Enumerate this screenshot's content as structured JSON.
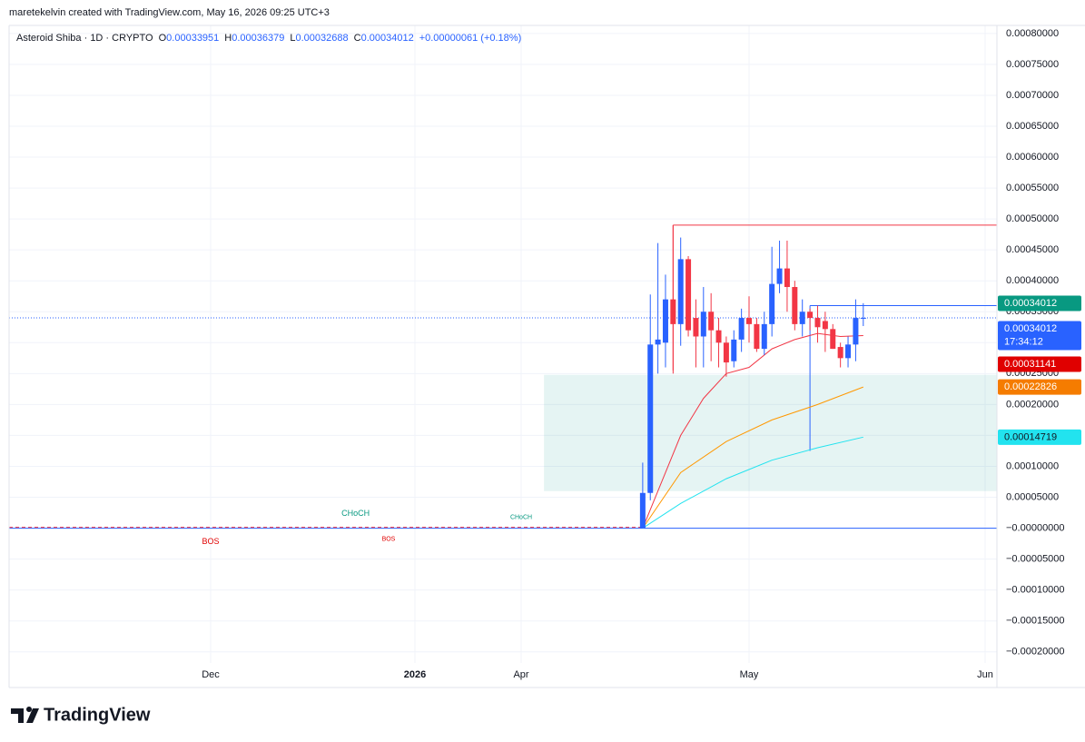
{
  "header": "maretekelvin created with TradingView.com, May 16, 2026 09:25 UTC+3",
  "brand": "TradingView",
  "chart_data": {
    "type": "candlestick",
    "title": "Asteroid Shiba · 1D · CRYPTO",
    "legend_labels": {
      "open": "O",
      "high": "H",
      "low": "L",
      "close": "C"
    },
    "change": "+0.00000061 (+0.18%)",
    "up_color": "#2962ff",
    "down_color": "#f23645",
    "xlim": [
      "2025-10-31",
      "2026-06-02"
    ],
    "xticks": [
      {
        "value": "2025-12-01",
        "label": "Dec"
      },
      {
        "value": "2026-01-01",
        "label": "2026"
      },
      {
        "value": "2026-04-01",
        "label": "Apr"
      },
      {
        "value": "2026-05-01",
        "label": "May"
      },
      {
        "value": "2026-06-01",
        "label": "Jun"
      }
    ],
    "ylim": [
      -0.000218,
      0.000813
    ],
    "yticks": [
      {
        "value": 0.0008,
        "label": "0.00080000"
      },
      {
        "value": 0.00075,
        "label": "0.00075000"
      },
      {
        "value": 0.0007,
        "label": "0.00070000"
      },
      {
        "value": 0.00065,
        "label": "0.00065000"
      },
      {
        "value": 0.0006,
        "label": "0.00060000"
      },
      {
        "value": 0.00055,
        "label": "0.00055000"
      },
      {
        "value": 0.0005,
        "label": "0.00050000"
      },
      {
        "value": 0.00045,
        "label": "0.00045000"
      },
      {
        "value": 0.0004,
        "label": "0.00040000"
      },
      {
        "value": 0.00035,
        "label": "0.00035000"
      },
      {
        "value": 0.0003,
        "label": "0.00030000"
      },
      {
        "value": 0.00025,
        "label": "0.00025000"
      },
      {
        "value": 0.0002,
        "label": "0.00020000"
      },
      {
        "value": 0.00015,
        "label": "0.00015000"
      },
      {
        "value": 0.0001,
        "label": "0.00010000"
      },
      {
        "value": 5e-05,
        "label": "0.00005000"
      },
      {
        "value": 0,
        "label": "−0.00000000"
      },
      {
        "value": -5e-05,
        "label": "−0.00005000"
      },
      {
        "value": -0.0001,
        "label": "−0.00010000"
      },
      {
        "value": -0.00015,
        "label": "−0.00015000"
      },
      {
        "value": -0.0002,
        "label": "−0.00020000"
      }
    ],
    "grid": true,
    "x": [
      "2026-04-17",
      "2026-04-18",
      "2026-04-19",
      "2026-04-20",
      "2026-04-21",
      "2026-04-22",
      "2026-04-23",
      "2026-04-24",
      "2026-04-25",
      "2026-04-26",
      "2026-04-27",
      "2026-04-28",
      "2026-04-29",
      "2026-04-30",
      "2026-05-01",
      "2026-05-02",
      "2026-05-03",
      "2026-05-04",
      "2026-05-05",
      "2026-05-06",
      "2026-05-07",
      "2026-05-08",
      "2026-05-09",
      "2026-05-10",
      "2026-05-11",
      "2026-05-12",
      "2026-05-13",
      "2026-05-14",
      "2026-05-15",
      "2026-05-16"
    ],
    "open": [
      0,
      5.7e-05,
      0.000297,
      0.0003,
      0.00037,
      0.00033,
      0.000435,
      0.00034,
      0.00031,
      0.00035,
      0.00032,
      0.0003,
      0.00027,
      0.000305,
      0.00034,
      0.00033,
      0.00029,
      0.00033,
      0.000395,
      0.00042,
      0.00039,
      0.00033,
      0.00035,
      0.00034,
      0.000335,
      0.000322,
      0.000293,
      0.000275,
      0.000297,
      0.00033951
    ],
    "high": [
      0.000106,
      0.000378,
      0.000461,
      0.00041,
      0.00049,
      0.00047,
      0.00044,
      0.00037,
      0.00039,
      0.00038,
      0.00034,
      0.00031,
      0.00032,
      0.000355,
      0.000375,
      0.00034,
      0.00035,
      0.000455,
      0.000465,
      0.000465,
      0.0004,
      0.00037,
      0.000355,
      0.00036,
      0.00035,
      0.00033,
      0.0003,
      0.00031,
      0.00037,
      0.00036379
    ],
    "low": [
      0,
      4.5e-05,
      0.00025,
      0.00026,
      0.00025,
      0.000295,
      0.00031,
      0.00026,
      0.00026,
      0.00027,
      0.00026,
      0.000245,
      0.00026,
      0.000285,
      0.0003,
      0.000285,
      0.00028,
      0.00031,
      0.00038,
      0.00035,
      0.00032,
      0.00031,
      0.00032,
      0.0003,
      0.000285,
      0.00029,
      0.00026,
      0.00026,
      0.00027,
      0.00032688
    ],
    "close": [
      5.7e-05,
      0.000297,
      0.000305,
      0.00037,
      0.00033,
      0.000435,
      0.00032,
      0.00031,
      0.00035,
      0.00032,
      0.0003,
      0.000268,
      0.000305,
      0.00034,
      0.00033,
      0.00029,
      0.00033,
      0.000395,
      0.00042,
      0.00039,
      0.00033,
      0.00035,
      0.00034,
      0.000325,
      0.000322,
      0.00029,
      0.000275,
      0.000297,
      0.00034,
      0.00034012
    ],
    "series": [
      {
        "color": "#f23645",
        "x": [
          "2026-04-17",
          "2026-04-19",
          "2026-04-22",
          "2026-04-25",
          "2026-04-28",
          "2026-05-01",
          "2026-05-04",
          "2026-05-07",
          "2026-05-10",
          "2026-05-13",
          "2026-05-16"
        ],
        "values": [
          0,
          6e-05,
          0.00015,
          0.00021,
          0.00025,
          0.00026,
          0.00029,
          0.000305,
          0.000315,
          0.00031,
          0.00031141
        ]
      },
      {
        "color": "#ff9800",
        "x": [
          "2026-04-17",
          "2026-04-22",
          "2026-04-28",
          "2026-05-04",
          "2026-05-10",
          "2026-05-16"
        ],
        "values": [
          0,
          9e-05,
          0.00014,
          0.000175,
          0.0002,
          0.00022826
        ]
      },
      {
        "color": "#22e3ef",
        "x": [
          "2026-04-17",
          "2026-04-22",
          "2026-04-28",
          "2026-05-04",
          "2026-05-10",
          "2026-05-16"
        ],
        "values": [
          0,
          4e-05,
          8e-05,
          0.00011,
          0.00013,
          0.00014719
        ]
      }
    ],
    "zone": {
      "x0": "2026-04-04",
      "x1": "2026-06-02",
      "y0": 6e-05,
      "y1": 0.000248
    },
    "levels": [
      {
        "value": 0.00049,
        "x0": "2026-04-21",
        "color": "#f23645"
      },
      {
        "value": 0.00036,
        "x0": "2026-05-09",
        "color": "#2962ff"
      }
    ],
    "last_price": 0.00034012,
    "countdown": "17:34:12",
    "price_labels": [
      {
        "value": 0.00034012,
        "label": "0.00034012",
        "color": "#089981"
      },
      {
        "value": 0.00034012,
        "label": "0.00034012",
        "color": "#2962ff",
        "countdown": true
      },
      {
        "value": 0.00031141,
        "label": "0.00031141",
        "color": "#e00000"
      },
      {
        "value": 0.00022826,
        "label": "0.00022826",
        "color": "#f57c00"
      },
      {
        "value": 0.00014719,
        "label": "0.00014719",
        "color": "#22e3ef",
        "dark": true
      }
    ],
    "annotations": [
      {
        "text": "CHoCH",
        "x": "2025-12-23",
        "y": 2.35e-05,
        "color": "#089981",
        "size": 9
      },
      {
        "text": "CHoCH",
        "x": "2026-04-01",
        "y": 1.76e-05,
        "color": "#089981",
        "size": 7
      },
      {
        "text": "BOS",
        "x": "2025-12-01",
        "y": -2.2e-05,
        "color": "#e00000",
        "size": 9
      },
      {
        "text": "BOS",
        "x": "2025-12-28",
        "y": -1.76e-05,
        "color": "#e00000",
        "size": 7
      }
    ]
  }
}
